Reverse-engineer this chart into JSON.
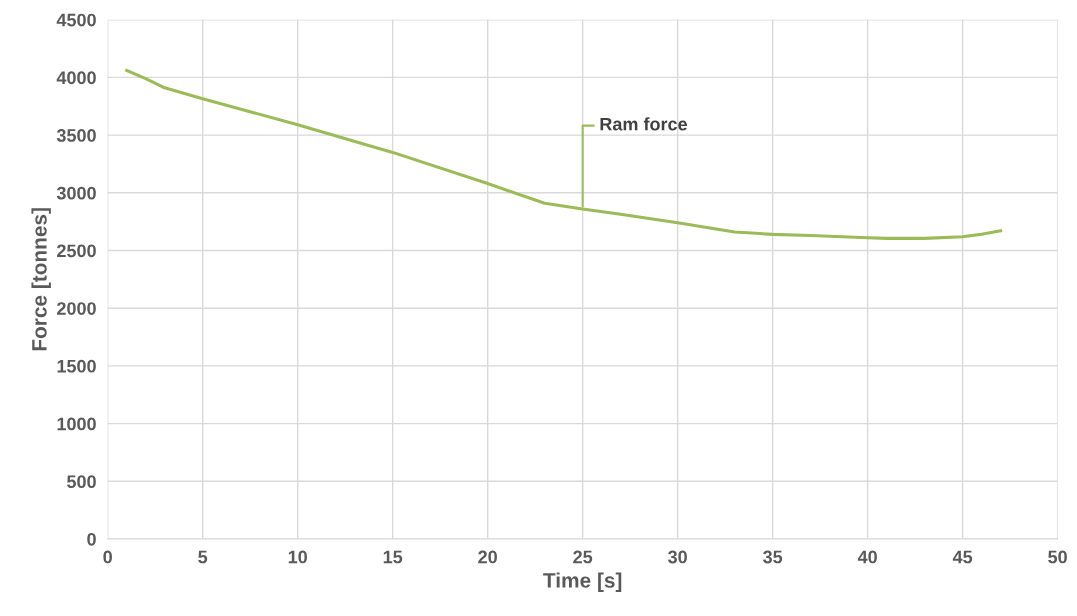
{
  "chart_data": {
    "type": "line",
    "xlabel": "Time [s]",
    "ylabel": "Force [tonnes]",
    "x": [
      1,
      2,
      3,
      5,
      10,
      15,
      20,
      23,
      25,
      27,
      30,
      33,
      35,
      37,
      40,
      41,
      43,
      45,
      46,
      47
    ],
    "series": [
      {
        "color": "#9bbb59",
        "values": [
          4060,
          3990,
          3910,
          3815,
          3590,
          3350,
          3080,
          2910,
          2860,
          2815,
          2740,
          2660,
          2640,
          2630,
          2610,
          2605,
          2605,
          2620,
          2640,
          2670
        ]
      }
    ],
    "annotations": [
      {
        "text": "Ram force",
        "x": 25,
        "y": 2860
      }
    ],
    "xlim": [
      0,
      50
    ],
    "xticks": [
      0,
      5,
      10,
      15,
      20,
      25,
      30,
      35,
      40,
      45,
      50
    ],
    "ylim": [
      0,
      4500
    ],
    "yticks": [
      0,
      500,
      1000,
      1500,
      2000,
      2500,
      3000,
      3500,
      4000,
      4500
    ],
    "grid": true,
    "marker": "none",
    "line_style": "solid"
  }
}
